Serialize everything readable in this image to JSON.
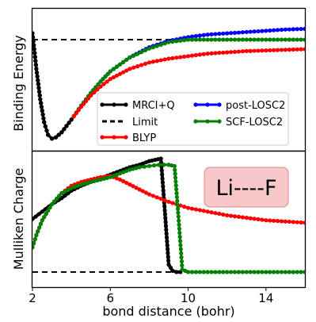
{
  "chart_data": [
    {
      "type": "line",
      "panel": "top",
      "title": "",
      "xlabel": "",
      "ylabel": "Binding Energy",
      "xlim": [
        2,
        16
      ],
      "ylim": [
        0,
        1
      ],
      "y_ticklabels": "none",
      "grid": false,
      "legend": {
        "placement": "lower-right",
        "columns": 2,
        "entries": [
          {
            "label": "MRCI+Q",
            "color": "#000000",
            "style": "solid-dots"
          },
          {
            "label": "Limit",
            "color": "#000000",
            "style": "dashed"
          },
          {
            "label": "BLYP",
            "color": "#ff0000",
            "style": "solid-dots"
          },
          {
            "label": "post-LOSC2",
            "color": "#0000ff",
            "style": "solid-dots"
          },
          {
            "label": "SCF-LOSC2",
            "color": "#008000",
            "style": "solid-dots"
          }
        ]
      },
      "limit": 0.85,
      "series": [
        {
          "name": "post-LOSC2",
          "color": "#0000ff",
          "x": [
            2,
            2.2,
            2.4,
            2.6,
            2.8,
            3.0,
            3.2,
            3.5,
            4,
            4.5,
            5,
            5.5,
            6,
            7,
            8,
            9,
            10,
            11,
            12,
            13,
            14,
            15,
            16
          ],
          "y": [
            0.9,
            0.62,
            0.38,
            0.2,
            0.1,
            0.07,
            0.08,
            0.12,
            0.22,
            0.33,
            0.43,
            0.52,
            0.6,
            0.71,
            0.79,
            0.84,
            0.87,
            0.89,
            0.9,
            0.91,
            0.92,
            0.93,
            0.935
          ]
        },
        {
          "name": "SCF-LOSC2",
          "color": "#008000",
          "x": [
            2,
            2.2,
            2.4,
            2.6,
            2.8,
            3.0,
            3.2,
            3.5,
            4,
            4.5,
            5,
            5.5,
            6,
            7,
            8,
            9,
            10,
            11,
            12,
            13,
            14,
            15,
            16
          ],
          "y": [
            0.9,
            0.62,
            0.38,
            0.2,
            0.1,
            0.07,
            0.08,
            0.12,
            0.22,
            0.33,
            0.43,
            0.52,
            0.6,
            0.71,
            0.78,
            0.83,
            0.85,
            0.85,
            0.85,
            0.85,
            0.85,
            0.85,
            0.85
          ]
        },
        {
          "name": "BLYP",
          "color": "#ff0000",
          "x": [
            2,
            2.2,
            2.4,
            2.6,
            2.8,
            3.0,
            3.2,
            3.5,
            4,
            4.5,
            5,
            5.5,
            6,
            7,
            8,
            9,
            10,
            11,
            12,
            13,
            14,
            15,
            16
          ],
          "y": [
            0.9,
            0.62,
            0.38,
            0.2,
            0.1,
            0.07,
            0.08,
            0.12,
            0.22,
            0.32,
            0.41,
            0.48,
            0.54,
            0.62,
            0.67,
            0.7,
            0.72,
            0.74,
            0.75,
            0.76,
            0.765,
            0.77,
            0.775
          ]
        },
        {
          "name": "MRCI+Q",
          "color": "#000000",
          "x": [
            2,
            2.2,
            2.4,
            2.6,
            2.8,
            3.0,
            3.2,
            3.5,
            4
          ],
          "y": [
            0.9,
            0.62,
            0.38,
            0.2,
            0.1,
            0.07,
            0.08,
            0.12,
            0.22
          ]
        }
      ]
    },
    {
      "type": "line",
      "panel": "bottom",
      "title": "",
      "xlabel": "bond distance (bohr)",
      "ylabel": "Mulliken Charge",
      "xlim": [
        2,
        16
      ],
      "x_ticks": [
        2,
        6,
        10,
        14
      ],
      "ylim": [
        0,
        1
      ],
      "y_ticklabels": "none",
      "grid": false,
      "annotation": {
        "text": "Li----F",
        "placement": "upper-right",
        "box_color": "#f8c8c8",
        "box_edge": "#e08888"
      },
      "limit": 0.0,
      "series": [
        {
          "name": "MRCI+Q",
          "color": "#000000",
          "x": [
            2,
            2.5,
            3,
            3.5,
            4,
            4.5,
            5,
            5.5,
            6,
            6.5,
            7,
            7.5,
            8,
            8.3,
            8.6,
            8.8,
            9.0,
            9.2,
            9.4,
            9.6
          ],
          "y": [
            0.43,
            0.49,
            0.55,
            0.6,
            0.66,
            0.7,
            0.73,
            0.76,
            0.79,
            0.82,
            0.85,
            0.87,
            0.9,
            0.91,
            0.92,
            0.5,
            0.06,
            0.01,
            0.0,
            0.0
          ]
        },
        {
          "name": "BLYP",
          "color": "#ff0000",
          "x": [
            2,
            2.2,
            2.5,
            3,
            3.5,
            4,
            4.5,
            5,
            5.5,
            6,
            6.5,
            7,
            7.5,
            8,
            9,
            10,
            11,
            12,
            13,
            14,
            15,
            16
          ],
          "y": [
            0.2,
            0.3,
            0.42,
            0.55,
            0.64,
            0.7,
            0.73,
            0.75,
            0.77,
            0.78,
            0.75,
            0.71,
            0.67,
            0.63,
            0.57,
            0.52,
            0.49,
            0.46,
            0.44,
            0.42,
            0.41,
            0.4
          ]
        },
        {
          "name": "SCF-LOSC2",
          "color": "#008000",
          "x": [
            2,
            2.2,
            2.5,
            3,
            3.5,
            4,
            4.5,
            5,
            5.5,
            6,
            6.5,
            7,
            7.5,
            8,
            8.5,
            9.0,
            9.3,
            9.5,
            9.7,
            10,
            11,
            12,
            13,
            14,
            15,
            16
          ],
          "y": [
            0.2,
            0.3,
            0.42,
            0.55,
            0.64,
            0.68,
            0.71,
            0.73,
            0.75,
            0.77,
            0.8,
            0.83,
            0.85,
            0.86,
            0.87,
            0.87,
            0.86,
            0.45,
            0.02,
            0.0,
            0.0,
            0.0,
            0.0,
            0.0,
            0.0,
            0.0
          ]
        }
      ]
    }
  ],
  "colors": {
    "mrci": "#000000",
    "blyp": "#ff0000",
    "post": "#0000ff",
    "scf": "#008000",
    "annotation_box": "#f8c8c8"
  }
}
